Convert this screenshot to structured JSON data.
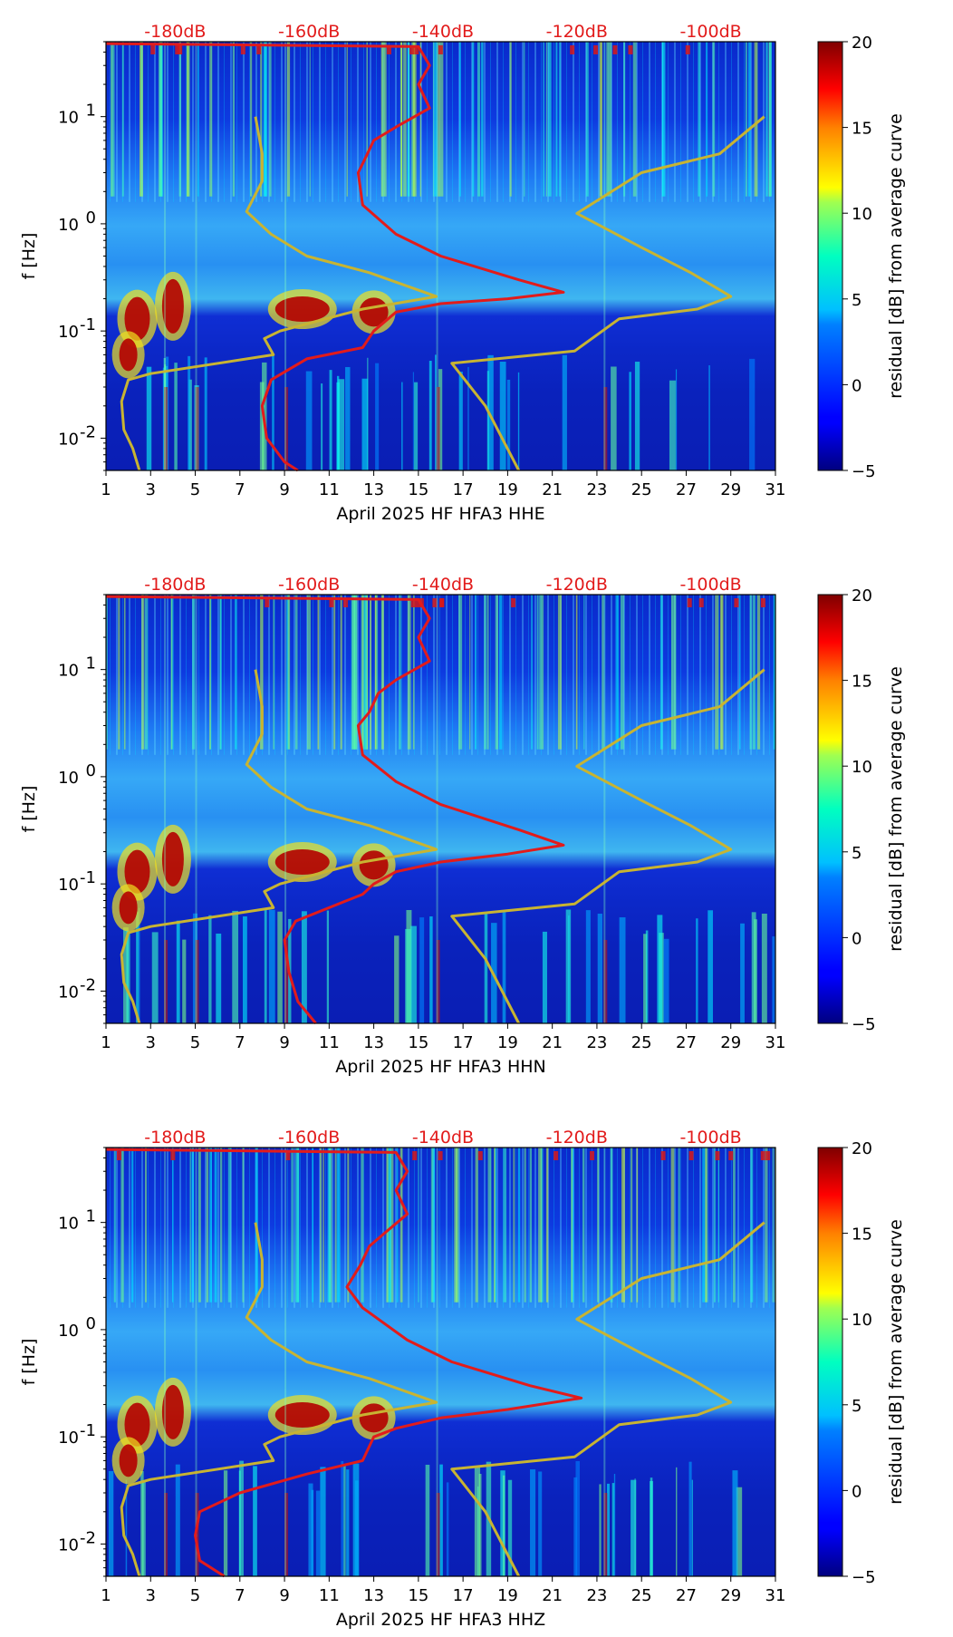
{
  "chart_data": [
    {
      "type": "heatmap",
      "title": "",
      "xlabel": "April 2025 HF HFA3  HHE",
      "ylabel": "f [Hz]",
      "xlim": [
        1,
        31
      ],
      "ylim_hz": [
        0.005,
        50
      ],
      "xticks": [
        1,
        3,
        5,
        7,
        9,
        11,
        13,
        15,
        17,
        19,
        21,
        23,
        25,
        27,
        29,
        31
      ],
      "yticks": [
        {
          "label": "10",
          "exp": "-2",
          "value": 0.01
        },
        {
          "label": "10",
          "exp": "-1",
          "value": 0.1
        },
        {
          "label": "10",
          "exp": "0",
          "value": 1
        },
        {
          "label": "10",
          "exp": "1",
          "value": 10
        }
      ],
      "db_scale": [
        {
          "label": "-180dB",
          "day": 4.1
        },
        {
          "label": "-160dB",
          "day": 10.1
        },
        {
          "label": "-140dB",
          "day": 16.1
        },
        {
          "label": "-120dB",
          "day": 22.1
        },
        {
          "label": "-100dB",
          "day": 28.1
        }
      ],
      "colorbar": {
        "label": "residual [dB] from average curve",
        "min": -5,
        "max": 20,
        "ticks": [
          -5,
          0,
          5,
          10,
          15,
          20
        ]
      },
      "series": [
        {
          "name": "noise-model-low",
          "color": "#c8b432",
          "points": [
            [
              2.5,
              0.005
            ],
            [
              2.2,
              0.008
            ],
            [
              1.8,
              0.012
            ],
            [
              1.7,
              0.022
            ],
            [
              2,
              0.035
            ],
            [
              3,
              0.04
            ],
            [
              8.5,
              0.06
            ],
            [
              8.1,
              0.085
            ],
            [
              8.8,
              0.1
            ],
            [
              12.5,
              0.16
            ],
            [
              15.8,
              0.21
            ],
            [
              12.8,
              0.35
            ],
            [
              10,
              0.5
            ],
            [
              8.4,
              0.8
            ],
            [
              7.3,
              1.3
            ],
            [
              8,
              2.5
            ],
            [
              8,
              4.5
            ],
            [
              7.7,
              10
            ]
          ]
        },
        {
          "name": "noise-model-high",
          "color": "#c8b432",
          "points": [
            [
              19.5,
              0.005
            ],
            [
              18,
              0.02
            ],
            [
              16.5,
              0.05
            ],
            [
              22,
              0.065
            ],
            [
              24,
              0.13
            ],
            [
              27.5,
              0.16
            ],
            [
              29,
              0.21
            ],
            [
              27.2,
              0.35
            ],
            [
              25,
              0.6
            ],
            [
              22.1,
              1.25
            ],
            [
              25,
              3
            ],
            [
              28.5,
              4.5
            ],
            [
              30.5,
              10
            ]
          ]
        },
        {
          "name": "median-psd",
          "color": "#e21b1b",
          "points": [
            [
              9.6,
              0.005
            ],
            [
              9,
              0.006
            ],
            [
              8.2,
              0.01
            ],
            [
              8,
              0.02
            ],
            [
              8.4,
              0.035
            ],
            [
              10,
              0.055
            ],
            [
              12.5,
              0.07
            ],
            [
              13,
              0.1
            ],
            [
              14,
              0.15
            ],
            [
              16,
              0.18
            ],
            [
              19,
              0.2
            ],
            [
              21.5,
              0.23
            ],
            [
              19.5,
              0.3
            ],
            [
              16,
              0.5
            ],
            [
              14,
              0.8
            ],
            [
              12.5,
              1.5
            ],
            [
              12.3,
              3
            ],
            [
              12.6,
              4
            ],
            [
              13,
              6
            ],
            [
              14,
              8
            ],
            [
              15.5,
              12
            ],
            [
              15,
              20
            ],
            [
              15.5,
              30
            ],
            [
              15,
              45
            ],
            [
              1,
              48
            ]
          ]
        }
      ]
    },
    {
      "type": "heatmap",
      "title": "",
      "xlabel": "April 2025 HF HFA3  HHN",
      "ylabel": "f [Hz]",
      "xlim": [
        1,
        31
      ],
      "ylim_hz": [
        0.005,
        50
      ],
      "xticks": [
        1,
        3,
        5,
        7,
        9,
        11,
        13,
        15,
        17,
        19,
        21,
        23,
        25,
        27,
        29,
        31
      ],
      "yticks": [
        {
          "label": "10",
          "exp": "-2",
          "value": 0.01
        },
        {
          "label": "10",
          "exp": "-1",
          "value": 0.1
        },
        {
          "label": "10",
          "exp": "0",
          "value": 1
        },
        {
          "label": "10",
          "exp": "1",
          "value": 10
        }
      ],
      "db_scale": [
        {
          "label": "-180dB",
          "day": 4.1
        },
        {
          "label": "-160dB",
          "day": 10.1
        },
        {
          "label": "-140dB",
          "day": 16.1
        },
        {
          "label": "-120dB",
          "day": 22.1
        },
        {
          "label": "-100dB",
          "day": 28.1
        }
      ],
      "colorbar": {
        "label": "residual [dB] from average curve",
        "min": -5,
        "max": 20,
        "ticks": [
          -5,
          0,
          5,
          10,
          15,
          20
        ]
      },
      "series": [
        {
          "name": "noise-model-low",
          "color": "#c8b432",
          "points": [
            [
              2.5,
              0.005
            ],
            [
              2.2,
              0.008
            ],
            [
              1.8,
              0.012
            ],
            [
              1.7,
              0.022
            ],
            [
              2,
              0.035
            ],
            [
              3,
              0.04
            ],
            [
              8.5,
              0.06
            ],
            [
              8.1,
              0.085
            ],
            [
              8.8,
              0.1
            ],
            [
              12.5,
              0.16
            ],
            [
              15.8,
              0.21
            ],
            [
              12.8,
              0.35
            ],
            [
              10,
              0.5
            ],
            [
              8.4,
              0.8
            ],
            [
              7.3,
              1.3
            ],
            [
              8,
              2.5
            ],
            [
              8,
              4.5
            ],
            [
              7.7,
              10
            ]
          ]
        },
        {
          "name": "noise-model-high",
          "color": "#c8b432",
          "points": [
            [
              19.5,
              0.005
            ],
            [
              18,
              0.02
            ],
            [
              16.5,
              0.05
            ],
            [
              22,
              0.065
            ],
            [
              24,
              0.13
            ],
            [
              27.5,
              0.16
            ],
            [
              29,
              0.21
            ],
            [
              27.2,
              0.35
            ],
            [
              25,
              0.6
            ],
            [
              22.1,
              1.25
            ],
            [
              25,
              3
            ],
            [
              28.5,
              4.5
            ],
            [
              30.5,
              10
            ]
          ]
        },
        {
          "name": "median-psd",
          "color": "#e21b1b",
          "points": [
            [
              10.4,
              0.005
            ],
            [
              9.6,
              0.008
            ],
            [
              9.2,
              0.015
            ],
            [
              9,
              0.03
            ],
            [
              9.5,
              0.045
            ],
            [
              11,
              0.06
            ],
            [
              12.5,
              0.08
            ],
            [
              13,
              0.1
            ],
            [
              14,
              0.13
            ],
            [
              16,
              0.16
            ],
            [
              19,
              0.19
            ],
            [
              21.5,
              0.23
            ],
            [
              19.5,
              0.32
            ],
            [
              16,
              0.55
            ],
            [
              14,
              0.9
            ],
            [
              12.5,
              1.6
            ],
            [
              12.3,
              3
            ],
            [
              12.8,
              4
            ],
            [
              13.2,
              6
            ],
            [
              14,
              8
            ],
            [
              15.5,
              12
            ],
            [
              15,
              20
            ],
            [
              15.5,
              30
            ],
            [
              15,
              45
            ],
            [
              1,
              48
            ]
          ]
        }
      ]
    },
    {
      "type": "heatmap",
      "title": "",
      "xlabel": "April 2025 HF HFA3  HHZ",
      "ylabel": "f [Hz]",
      "xlim": [
        1,
        31
      ],
      "ylim_hz": [
        0.005,
        50
      ],
      "xticks": [
        1,
        3,
        5,
        7,
        9,
        11,
        13,
        15,
        17,
        19,
        21,
        23,
        25,
        27,
        29,
        31
      ],
      "yticks": [
        {
          "label": "10",
          "exp": "-2",
          "value": 0.01
        },
        {
          "label": "10",
          "exp": "-1",
          "value": 0.1
        },
        {
          "label": "10",
          "exp": "0",
          "value": 1
        },
        {
          "label": "10",
          "exp": "1",
          "value": 10
        }
      ],
      "db_scale": [
        {
          "label": "-180dB",
          "day": 4.1
        },
        {
          "label": "-160dB",
          "day": 10.1
        },
        {
          "label": "-140dB",
          "day": 16.1
        },
        {
          "label": "-120dB",
          "day": 22.1
        },
        {
          "label": "-100dB",
          "day": 28.1
        }
      ],
      "colorbar": {
        "label": "residual [dB] from average curve",
        "min": -5,
        "max": 20,
        "ticks": [
          -5,
          0,
          5,
          10,
          15,
          20
        ]
      },
      "series": [
        {
          "name": "noise-model-low",
          "color": "#c8b432",
          "points": [
            [
              2.5,
              0.005
            ],
            [
              2.2,
              0.008
            ],
            [
              1.8,
              0.012
            ],
            [
              1.7,
              0.022
            ],
            [
              2,
              0.035
            ],
            [
              3,
              0.04
            ],
            [
              8.5,
              0.06
            ],
            [
              8.1,
              0.085
            ],
            [
              8.8,
              0.1
            ],
            [
              12.5,
              0.16
            ],
            [
              15.8,
              0.21
            ],
            [
              12.8,
              0.35
            ],
            [
              10,
              0.5
            ],
            [
              8.4,
              0.8
            ],
            [
              7.3,
              1.3
            ],
            [
              8,
              2.5
            ],
            [
              8,
              4.5
            ],
            [
              7.7,
              10
            ]
          ]
        },
        {
          "name": "noise-model-high",
          "color": "#c8b432",
          "points": [
            [
              19.5,
              0.005
            ],
            [
              18,
              0.02
            ],
            [
              16.5,
              0.05
            ],
            [
              22,
              0.065
            ],
            [
              24,
              0.13
            ],
            [
              27.5,
              0.16
            ],
            [
              29,
              0.21
            ],
            [
              27.2,
              0.35
            ],
            [
              25,
              0.6
            ],
            [
              22.1,
              1.25
            ],
            [
              25,
              3
            ],
            [
              28.5,
              4.5
            ],
            [
              30.5,
              10
            ]
          ]
        },
        {
          "name": "median-psd",
          "color": "#e21b1b",
          "points": [
            [
              6.3,
              0.005
            ],
            [
              5.2,
              0.007
            ],
            [
              5,
              0.012
            ],
            [
              5.2,
              0.02
            ],
            [
              7,
              0.03
            ],
            [
              10,
              0.045
            ],
            [
              12.5,
              0.06
            ],
            [
              13,
              0.1
            ],
            [
              14,
              0.12
            ],
            [
              16,
              0.15
            ],
            [
              19,
              0.18
            ],
            [
              22.3,
              0.23
            ],
            [
              20,
              0.3
            ],
            [
              16.5,
              0.5
            ],
            [
              14.5,
              0.8
            ],
            [
              12.5,
              1.6
            ],
            [
              11.8,
              2.5
            ],
            [
              12.4,
              4
            ],
            [
              12.8,
              6
            ],
            [
              13.5,
              8
            ],
            [
              14.5,
              12
            ],
            [
              14,
              20
            ],
            [
              14.5,
              30
            ],
            [
              14,
              45
            ],
            [
              1,
              48
            ]
          ]
        }
      ]
    }
  ]
}
